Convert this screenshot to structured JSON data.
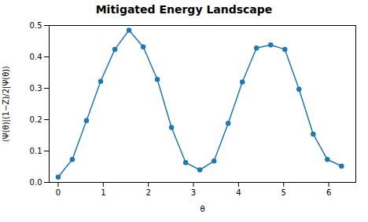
{
  "chart_data": {
    "type": "line",
    "title": "Mitigated Energy Landscape",
    "xlabel": "θ",
    "ylabel": "⟨Ψ(θ)|(1−Z)/2|Ψ(θ)⟩",
    "x": [
      0.0,
      0.314,
      0.628,
      0.942,
      1.257,
      1.571,
      1.885,
      2.199,
      2.513,
      2.827,
      3.142,
      3.456,
      3.77,
      4.084,
      4.398,
      4.712,
      5.027,
      5.341,
      5.655,
      5.969,
      6.283
    ],
    "values": [
      0.017,
      0.073,
      0.197,
      0.322,
      0.424,
      0.485,
      0.432,
      0.328,
      0.175,
      0.063,
      0.04,
      0.068,
      0.188,
      0.32,
      0.428,
      0.438,
      0.424,
      0.297,
      0.154,
      0.073,
      0.052
    ],
    "color": "#1f77b4",
    "marker": "circle",
    "line_style": "solid",
    "xlim": [
      -0.2,
      6.6
    ],
    "ylim": [
      0.0,
      0.5
    ],
    "xticks": [
      0,
      1,
      2,
      3,
      4,
      5,
      6
    ],
    "yticks": [
      {
        "value": 0,
        "label": "0.0"
      },
      0.1,
      0.2,
      0.3,
      0.4,
      0.5
    ],
    "grid": false
  }
}
